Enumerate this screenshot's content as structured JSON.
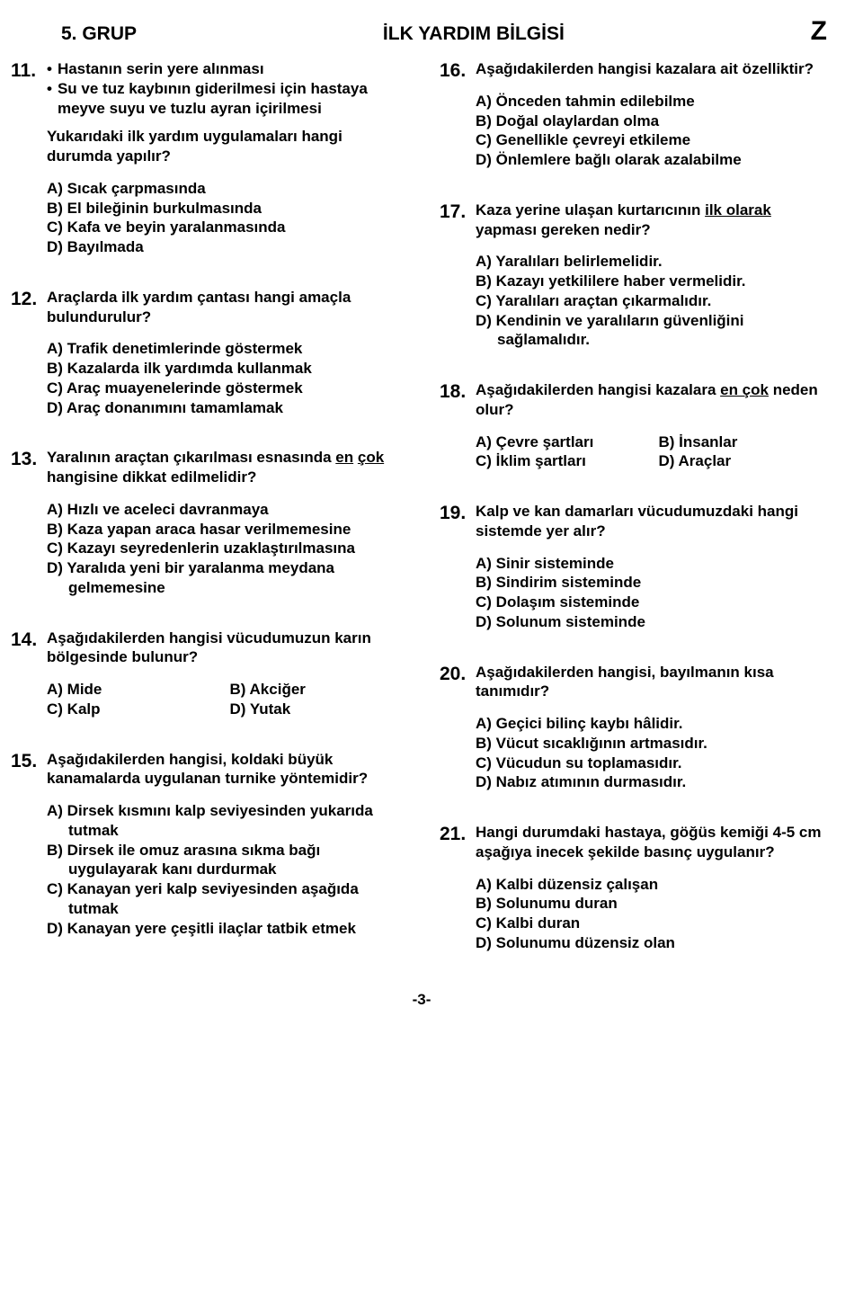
{
  "header": {
    "group": "5. GRUP",
    "title": "İLK YARDIM BİLGİSİ",
    "letter": "Z"
  },
  "footer": "-3-",
  "left": [
    {
      "num": "11.",
      "bullets": [
        "Hastanın serin yere alınması",
        "Su ve tuz kaybının giderilmesi için hastaya meyve suyu ve tuzlu ayran içirilmesi"
      ],
      "after": "Yukarıdaki ilk yardım uygulamaları hangi durumda yapılır?",
      "opts": [
        "A) Sıcak çarpmasında",
        "B) El bileğinin burkulmasında",
        "C) Kafa ve beyin yaralanmasında",
        "D) Bayılmada"
      ]
    },
    {
      "num": "12.",
      "stem": "Araçlarda ilk yardım çantası hangi amaçla bulundurulur?",
      "opts": [
        "A) Trafik denetimlerinde göstermek",
        "B) Kazalarda ilk yardımda kullanmak",
        "C) Araç muayenelerinde göstermek",
        "D) Araç donanımını tamamlamak"
      ]
    },
    {
      "num": "13.",
      "stem_html": "Yaralının araçtan çıkarılması esnasında <u>en</u> <u>çok</u> hangisine dikkat edilmelidir?",
      "opts": [
        "A) Hızlı ve aceleci davranmaya",
        "B) Kaza yapan araca hasar verilmemesine",
        "C) Kazayı seyredenlerin uzaklaştırılmasına",
        "D) Yaralıda yeni bir yaralanma meydana gelmemesine"
      ]
    },
    {
      "num": "14.",
      "stem": "Aşağıdakilerden hangisi vücudumuzun karın bölgesinde bulunur?",
      "grid": true,
      "opts": [
        "A) Mide",
        "B) Akciğer",
        "C) Kalp",
        "D) Yutak"
      ]
    },
    {
      "num": "15.",
      "stem": "Aşağıdakilerden hangisi, koldaki büyük kanamalarda uygulanan turnike yöntemidir?",
      "opts": [
        "A) Dirsek kısmını kalp seviyesinden yukarıda tutmak",
        "B) Dirsek ile omuz arasına sıkma bağı uygulayarak kanı durdurmak",
        "C) Kanayan yeri kalp seviyesinden aşağıda tutmak",
        "D) Kanayan yere çeşitli ilaçlar tatbik etmek"
      ]
    }
  ],
  "right": [
    {
      "num": "16.",
      "stem": "Aşağıdakilerden hangisi kazalara ait özelliktir?",
      "opts": [
        "A) Önceden tahmin edilebilme",
        "B) Doğal olaylardan olma",
        "C) Genellikle çevreyi etkileme",
        "D) Önlemlere bağlı olarak azalabilme"
      ]
    },
    {
      "num": "17.",
      "stem_html": "Kaza yerine ulaşan kurtarıcının <u>ilk olarak</u> yapması gereken nedir?",
      "opts": [
        "A) Yaralıları belirlemelidir.",
        "B) Kazayı yetkililere haber vermelidir.",
        "C) Yaralıları araçtan çıkarmalıdır.",
        "D) Kendinin ve yaralıların güvenliğini sağlamalıdır."
      ]
    },
    {
      "num": "18.",
      "stem_html": "Aşağıdakilerden hangisi kazalara <u>en çok</u> neden olur?",
      "grid": true,
      "opts": [
        "A) Çevre şartları",
        "B) İnsanlar",
        "C) İklim şartları",
        "D) Araçlar"
      ]
    },
    {
      "num": "19.",
      "stem": "Kalp ve kan damarları vücudumuzdaki hangi sistemde yer alır?",
      "opts": [
        "A) Sinir sisteminde",
        "B) Sindirim sisteminde",
        "C) Dolaşım sisteminde",
        "D) Solunum sisteminde"
      ]
    },
    {
      "num": "20.",
      "stem": "Aşağıdakilerden hangisi, bayılmanın kısa tanımıdır?",
      "opts": [
        "A) Geçici bilinç kaybı hâlidir.",
        "B) Vücut sıcaklığının artmasıdır.",
        "C) Vücudun su toplamasıdır.",
        "D) Nabız atımının durmasıdır."
      ]
    },
    {
      "num": "21.",
      "stem": "Hangi durumdaki hastaya, göğüs kemiği 4-5 cm aşağıya inecek şekilde basınç uygulanır?",
      "opts": [
        "A) Kalbi düzensiz çalışan",
        "B) Solunumu duran",
        "C) Kalbi duran",
        "D) Solunumu düzensiz olan"
      ]
    }
  ]
}
